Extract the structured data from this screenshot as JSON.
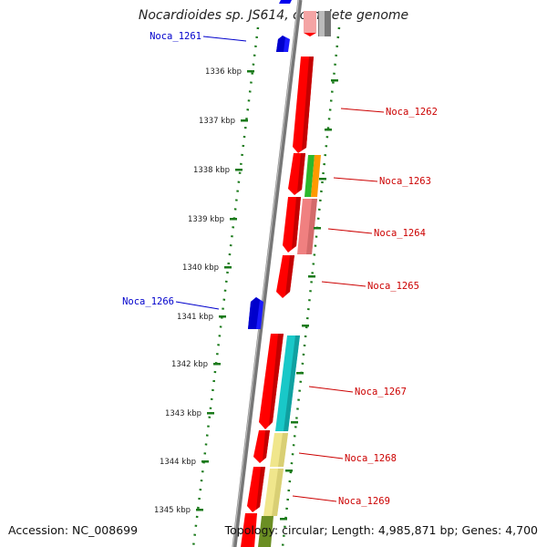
{
  "title": "Nocardioides sp. JS614, complete genome",
  "footer": {
    "accession": "Accession: NC_008699",
    "summary": "Topology: circular; Length: 4,985,871 bp; Genes: 4,700"
  },
  "colors": {
    "backbone": "#808080",
    "tick_dotted": "#1a7a1a",
    "forward_gene": "#ff0000",
    "reverse_gene": "#0000ee",
    "label_forward": "#cc0000",
    "label_reverse": "#0000cc",
    "cds_cyan": "#19c8c8",
    "cds_khaki": "#f0e68c",
    "cds_salmon": "#f08080",
    "cds_green": "#2cb82c",
    "cds_orange": "#ff9a00",
    "cds_olive": "#6b8e23",
    "cds_gray": "#777777"
  },
  "scale": {
    "unit": "kbp",
    "ticks": [
      "1336 kbp",
      "1337 kbp",
      "1338 kbp",
      "1339 kbp",
      "1340 kbp",
      "1341 kbp",
      "1342 kbp",
      "1343 kbp",
      "1344 kbp",
      "1345 kbp"
    ]
  },
  "genes": [
    {
      "label": "Noca_1261",
      "strand": "reverse"
    },
    {
      "label": "Noca_1262",
      "strand": "forward"
    },
    {
      "label": "Noca_1263",
      "strand": "forward"
    },
    {
      "label": "Noca_1264",
      "strand": "forward"
    },
    {
      "label": "Noca_1265",
      "strand": "forward"
    },
    {
      "label": "Noca_1266",
      "strand": "reverse"
    },
    {
      "label": "Noca_1267",
      "strand": "forward"
    },
    {
      "label": "Noca_1268",
      "strand": "forward"
    },
    {
      "label": "Noca_1269",
      "strand": "forward"
    }
  ]
}
